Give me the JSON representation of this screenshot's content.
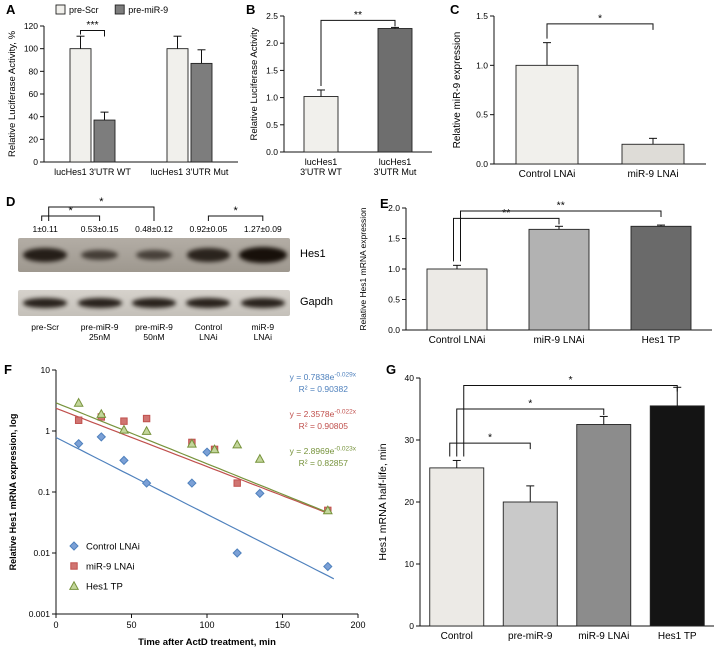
{
  "panel_labels": [
    "A",
    "B",
    "C",
    "D",
    "E",
    "F",
    "G"
  ],
  "chart_data": [
    {
      "id": "A",
      "type": "bar",
      "ylabel": "Relative Luciferase Activity, %",
      "ylim": [
        0,
        120
      ],
      "yticks": [
        0,
        20,
        40,
        60,
        80,
        100,
        120
      ],
      "ytick_decimals": 0,
      "categories": [
        "lucHes1 3'UTR WT",
        "lucHes1 3'UTR Mut"
      ],
      "legend": [
        {
          "label": "pre-Scr",
          "color": "#f1f0ec"
        },
        {
          "label": "pre-miR-9",
          "color": "#7d7d7d"
        }
      ],
      "series": [
        {
          "name": "pre-Scr",
          "color": "#f1f0ec",
          "values": [
            100,
            100
          ],
          "errors": [
            11,
            11
          ]
        },
        {
          "name": "pre-miR-9",
          "color": "#7d7d7d",
          "values": [
            37,
            87
          ],
          "errors": [
            7,
            12
          ]
        }
      ],
      "significance": [
        {
          "bars": [
            0,
            1
          ],
          "label": "***",
          "y": 116
        }
      ]
    },
    {
      "id": "B",
      "type": "bar",
      "ylabel": "Relative Luciferase Activity",
      "ylim": [
        0,
        2.5
      ],
      "yticks": [
        0,
        0.5,
        1,
        1.5,
        2,
        2.5
      ],
      "ytick_decimals": 1,
      "categories": [
        "lucHes1\n3'UTR WT",
        "lucHes1\n3'UTR Mut"
      ],
      "bars": [
        {
          "value": 1.02,
          "error": 0.12,
          "color": "#f1f0ec"
        },
        {
          "value": 2.27,
          "error": 0.02,
          "color": "#6e6e6e"
        }
      ],
      "significance": [
        {
          "bars": [
            0,
            1
          ],
          "label": "**",
          "y": 2.42
        }
      ]
    },
    {
      "id": "C",
      "type": "bar",
      "ylabel": "Relative miR-9 expression",
      "ylim": [
        0,
        1.5
      ],
      "yticks": [
        0,
        0.5,
        1,
        1.5
      ],
      "ytick_decimals": 1,
      "categories": [
        "Control LNAi",
        "miR-9 LNAi"
      ],
      "bars": [
        {
          "value": 1.0,
          "error": 0.23,
          "color": "#f1f0ec"
        },
        {
          "value": 0.2,
          "error": 0.06,
          "color": "#dedcd7"
        }
      ],
      "significance": [
        {
          "bars": [
            0,
            1
          ],
          "label": "*",
          "y": 1.42
        }
      ]
    },
    {
      "id": "E",
      "type": "bar",
      "ylabel": "Relative Hes1 mRNA expression",
      "ylim": [
        0,
        2
      ],
      "yticks": [
        0,
        0.5,
        1,
        1.5,
        2
      ],
      "ytick_decimals": 1,
      "categories": [
        "Control LNAi",
        "miR-9 LNAi",
        "Hes1 TP"
      ],
      "bars": [
        {
          "value": 1.0,
          "error": 0.06,
          "color": "#eceae6"
        },
        {
          "value": 1.65,
          "error": 0.05,
          "color": "#b2b2b2"
        },
        {
          "value": 1.7,
          "error": 0.02,
          "color": "#6a6a6a"
        }
      ],
      "significance": [
        {
          "bars": [
            0,
            1
          ],
          "label": "**",
          "y": 1.83
        },
        {
          "bars": [
            0,
            2
          ],
          "label": "**",
          "y": 1.95
        }
      ]
    },
    {
      "id": "G",
      "type": "bar",
      "ylabel": "Hes1 mRNA half-life, min",
      "ylim": [
        0,
        40
      ],
      "yticks": [
        0,
        10,
        20,
        30,
        40
      ],
      "ytick_decimals": 0,
      "categories": [
        "Control",
        "pre-miR-9",
        "miR-9 LNAi",
        "Hes1 TP"
      ],
      "bars": [
        {
          "value": 25.5,
          "error": 1.2,
          "color": "#eceae6"
        },
        {
          "value": 20,
          "error": 2.6,
          "color": "#c9c9c9"
        },
        {
          "value": 32.5,
          "error": 1.3,
          "color": "#8c8c8c"
        },
        {
          "value": 35.5,
          "error": 3,
          "color": "#141414"
        }
      ],
      "significance": [
        {
          "bars": [
            0,
            1
          ],
          "label": "*",
          "y": 29.5
        },
        {
          "bars": [
            0,
            2
          ],
          "label": "*",
          "y": 35
        },
        {
          "bars": [
            0,
            3
          ],
          "label": "*",
          "y": 38.8
        }
      ]
    },
    {
      "id": "F",
      "type": "scatter",
      "ylabel": "Relative Hes1 mRNA expression, log",
      "xlabel": "Time after ActD treatment, min",
      "xlim": [
        0,
        200
      ],
      "xticks": [
        0,
        50,
        100,
        150,
        200
      ],
      "ylim_log": [
        0.001,
        10
      ],
      "yticks": [
        0.001,
        0.01,
        0.1,
        1,
        10
      ],
      "series": [
        {
          "name": "Control LNAi",
          "marker": "diamond",
          "color": "#4f81bd",
          "fill": "#7ba0d6",
          "points": [
            [
              15,
              0.62
            ],
            [
              30,
              0.8
            ],
            [
              45,
              0.33
            ],
            [
              60,
              0.14
            ],
            [
              90,
              0.14
            ],
            [
              100,
              0.45
            ],
            [
              120,
              0.01
            ],
            [
              135,
              0.095
            ],
            [
              180,
              0.006
            ]
          ],
          "trend": {
            "a": 0.7838,
            "b": -0.029,
            "x_end": 185
          },
          "equation": "y = 0.7838e",
          "exponent": "-0.029x",
          "r2": "R² = 0.90382"
        },
        {
          "name": "miR-9 LNAi",
          "marker": "square",
          "color": "#c0504d",
          "fill": "#d07572",
          "points": [
            [
              15,
              1.5
            ],
            [
              30,
              1.7
            ],
            [
              45,
              1.45
            ],
            [
              60,
              1.6
            ],
            [
              90,
              0.65
            ],
            [
              105,
              0.5
            ],
            [
              120,
              0.14
            ],
            [
              180,
              0.05
            ]
          ],
          "trend": {
            "a": 2.3578,
            "b": -0.022,
            "x_end": 182
          },
          "equation": "y = 2.3578e",
          "exponent": "-0.022x",
          "r2": "R² = 0.90805"
        },
        {
          "name": "Hes1 TP",
          "marker": "triangle",
          "color": "#77933c",
          "fill": "#c3d69b",
          "points": [
            [
              15,
              2.9
            ],
            [
              30,
              1.9
            ],
            [
              45,
              1.05
            ],
            [
              60,
              1.0
            ],
            [
              90,
              0.62
            ],
            [
              105,
              0.5
            ],
            [
              120,
              0.6
            ],
            [
              135,
              0.35
            ],
            [
              180,
              0.05
            ]
          ],
          "trend": {
            "a": 2.8969,
            "b": -0.023,
            "x_end": 182
          },
          "equation": "y = 2.8969e",
          "exponent": "-0.023x",
          "r2": "R² = 0.82857"
        }
      ]
    }
  ],
  "western_blot": {
    "quantification": [
      "1±0.11",
      "0.53±0.15",
      "0.48±0.12",
      "0.92±0.05",
      "1.27±0.09"
    ],
    "rows": [
      {
        "label": "Hes1",
        "intensities": [
          1.0,
          0.53,
          0.48,
          0.92,
          1.27
        ]
      },
      {
        "label": "Gapdh",
        "intensities": [
          1,
          1,
          1,
          1,
          1
        ]
      }
    ],
    "lanes": [
      [
        "pre-Scr"
      ],
      [
        "pre-miR-9",
        "25nM"
      ],
      [
        "pre-miR-9",
        "50nM"
      ],
      [
        "Control",
        "LNAi"
      ],
      [
        "miR-9",
        "LNAi"
      ]
    ],
    "significance": [
      {
        "lanes": [
          0,
          1
        ],
        "label": "*"
      },
      {
        "lanes": [
          0,
          2
        ],
        "label": "*"
      },
      {
        "lanes": [
          3,
          4
        ],
        "label": "*"
      }
    ]
  }
}
